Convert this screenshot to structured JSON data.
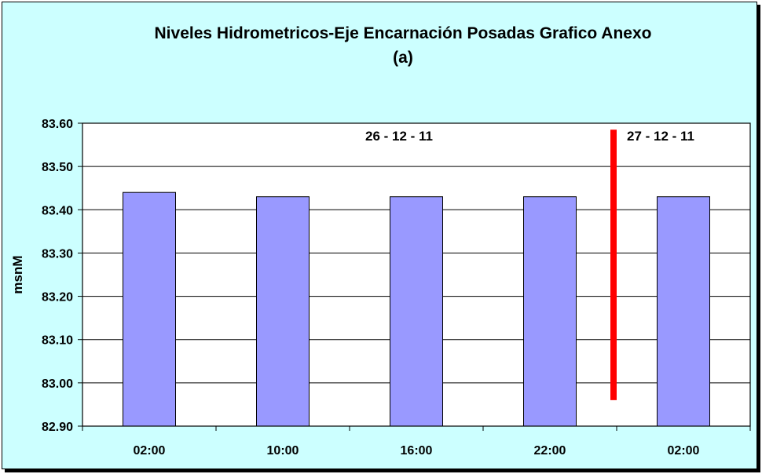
{
  "chart_data": {
    "type": "bar",
    "title": "Niveles Hidrometricos-Eje Encarnación Posadas Grafico Anexo",
    "subtitle": "(a)",
    "xlabel": "",
    "ylabel": "msnM",
    "categories": [
      "02:00",
      "10:00",
      "16:00",
      "22:00",
      "02:00"
    ],
    "values": [
      83.44,
      83.43,
      83.43,
      83.43,
      83.43
    ],
    "ylim": [
      82.9,
      83.6
    ],
    "yticks": [
      "82.90",
      "83.00",
      "83.10",
      "83.20",
      "83.30",
      "83.40",
      "83.50",
      "83.60"
    ],
    "grid": true,
    "legend": "none",
    "annotations": [
      {
        "text": "26 - 12 - 11"
      },
      {
        "text": "27 - 12 - 11"
      }
    ],
    "day_separator": {
      "between_categories": [
        3,
        4
      ],
      "y_from": 82.96,
      "y_to": 83.585
    },
    "colors": {
      "background": "#ccffff",
      "plot_area": "#ffffff",
      "bar": "#9999ff",
      "separator": "#ff0000"
    }
  }
}
